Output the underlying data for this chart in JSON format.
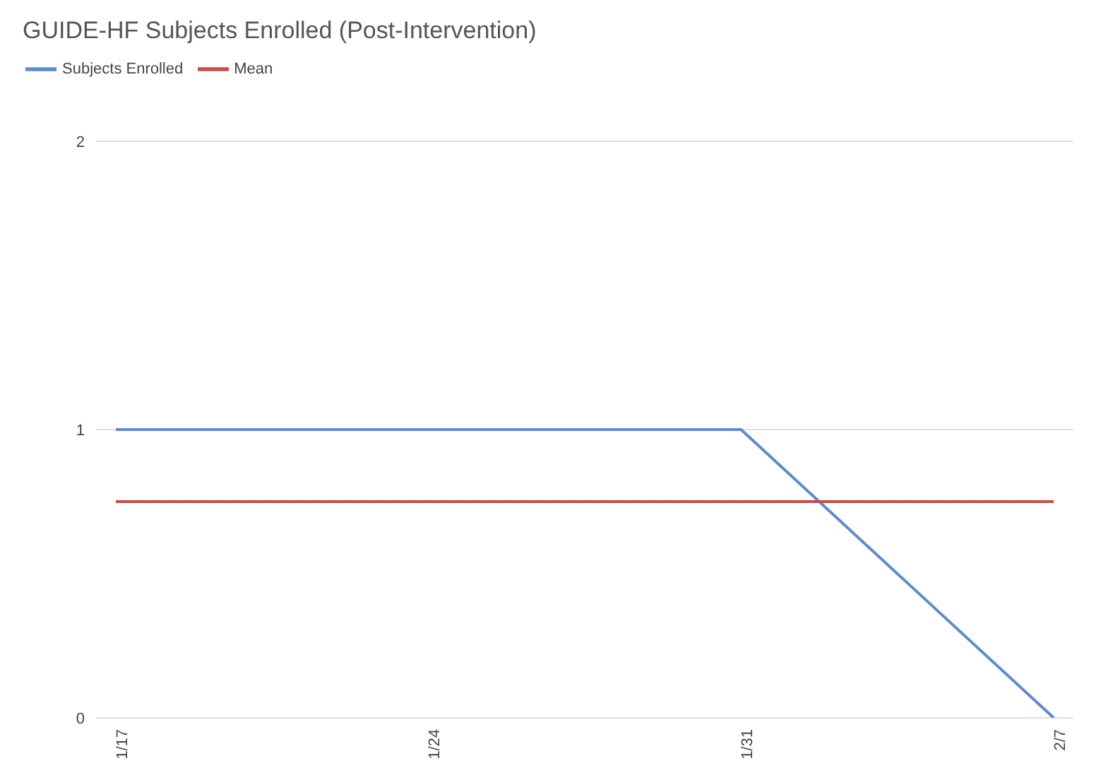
{
  "chart_data": {
    "type": "line",
    "title": "GUIDE-HF Subjects Enrolled (Post-Intervention)",
    "categories": [
      "1/17",
      "1/24",
      "1/31",
      "2/7"
    ],
    "series": [
      {
        "name": "Subjects Enrolled",
        "color": "#5b8bd0",
        "values": [
          1,
          1,
          1,
          0
        ]
      },
      {
        "name": "Mean",
        "color": "#cc4b42",
        "values": [
          0.75,
          0.75,
          0.75,
          0.75
        ]
      }
    ],
    "ylim": [
      0,
      2
    ],
    "yticks": [
      0,
      1,
      2
    ],
    "grid": "y",
    "legend": "top left",
    "marker": "none",
    "line_style": "solid"
  }
}
